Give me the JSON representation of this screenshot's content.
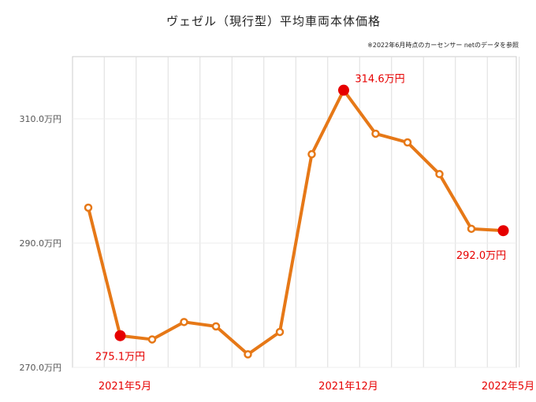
{
  "chart_data": {
    "type": "line",
    "title": "ヴェゼル（現行型）平均車両本体価格",
    "note": "※2022年6月時点のカーセンサー netのデータを参照",
    "xlabel": "",
    "ylabel": "",
    "ylim": [
      270,
      320
    ],
    "yticks": [
      {
        "value": 270,
        "label": "270.0万円"
      },
      {
        "value": 290,
        "label": "290.0万円"
      },
      {
        "value": 310,
        "label": "310.0万円"
      }
    ],
    "x_labels": [
      {
        "index": 1,
        "label": "2021年5月"
      },
      {
        "index": 8,
        "label": "2021年12月"
      },
      {
        "index": 13,
        "label": "2022年5月"
      }
    ],
    "values": [
      295.7,
      275.1,
      274.5,
      277.3,
      276.6,
      272.1,
      275.7,
      304.3,
      314.6,
      307.6,
      306.2,
      301.1,
      292.3,
      292.0
    ],
    "highlights": [
      {
        "index": 1,
        "label": "275.1万円"
      },
      {
        "index": 8,
        "label": "314.6万円"
      },
      {
        "index": 13,
        "label": "292.0万円"
      }
    ],
    "grid": "vertical",
    "colors": {
      "line": "#e67817",
      "highlight": "#e60000",
      "grid": "#dddddd"
    }
  }
}
